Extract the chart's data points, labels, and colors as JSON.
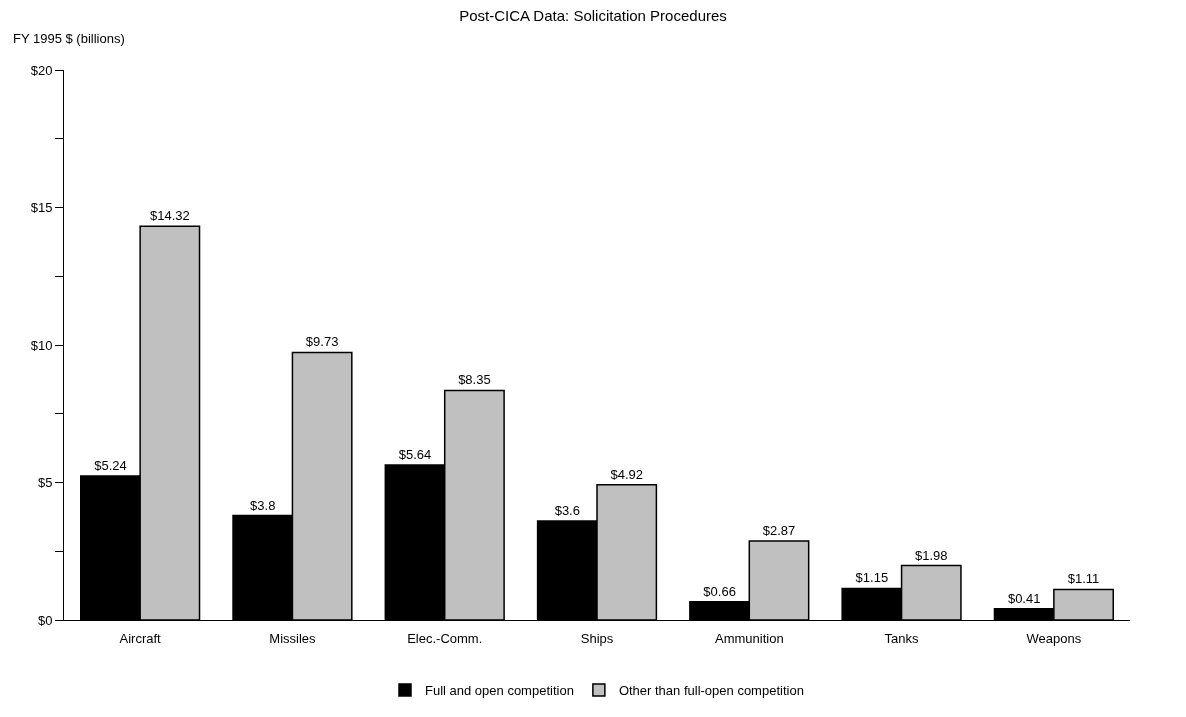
{
  "chart_data": {
    "type": "bar",
    "title": "Post-CICA Data: Solicitation Procedures",
    "ylabel": "FY 1995 $ (billions)",
    "categories": [
      "Aircraft",
      "Missiles",
      "Elec.-Comm.",
      "Ships",
      "Ammunition",
      "Tanks",
      "Weapons"
    ],
    "series": [
      {
        "name": "Full and open competition",
        "color": "#000000",
        "values": [
          5.24,
          3.8,
          5.64,
          3.6,
          0.66,
          1.15,
          0.41
        ],
        "value_labels": [
          "$5.24",
          "$3.8",
          "$5.64",
          "$3.6",
          "$0.66",
          "$1.15",
          "$0.41"
        ]
      },
      {
        "name": "Other than full-open competition",
        "color": "#c0c0c0",
        "values": [
          14.32,
          9.73,
          8.35,
          4.92,
          2.87,
          1.98,
          1.11
        ],
        "value_labels": [
          "$14.32",
          "$9.73",
          "$8.35",
          "$4.92",
          "$2.87",
          "$1.98",
          "$1.11"
        ]
      }
    ],
    "ylim": [
      0,
      20
    ],
    "yticks": [
      {
        "value": 0,
        "label": "$0"
      },
      {
        "value": 2.5,
        "label": null
      },
      {
        "value": 5,
        "label": "$5"
      },
      {
        "value": 7.5,
        "label": null
      },
      {
        "value": 10,
        "label": "$10"
      },
      {
        "value": 12.5,
        "label": null
      },
      {
        "value": 15,
        "label": "$15"
      },
      {
        "value": 17.5,
        "label": null
      },
      {
        "value": 20,
        "label": "$20"
      }
    ],
    "grid": false,
    "legend": "bottom"
  }
}
